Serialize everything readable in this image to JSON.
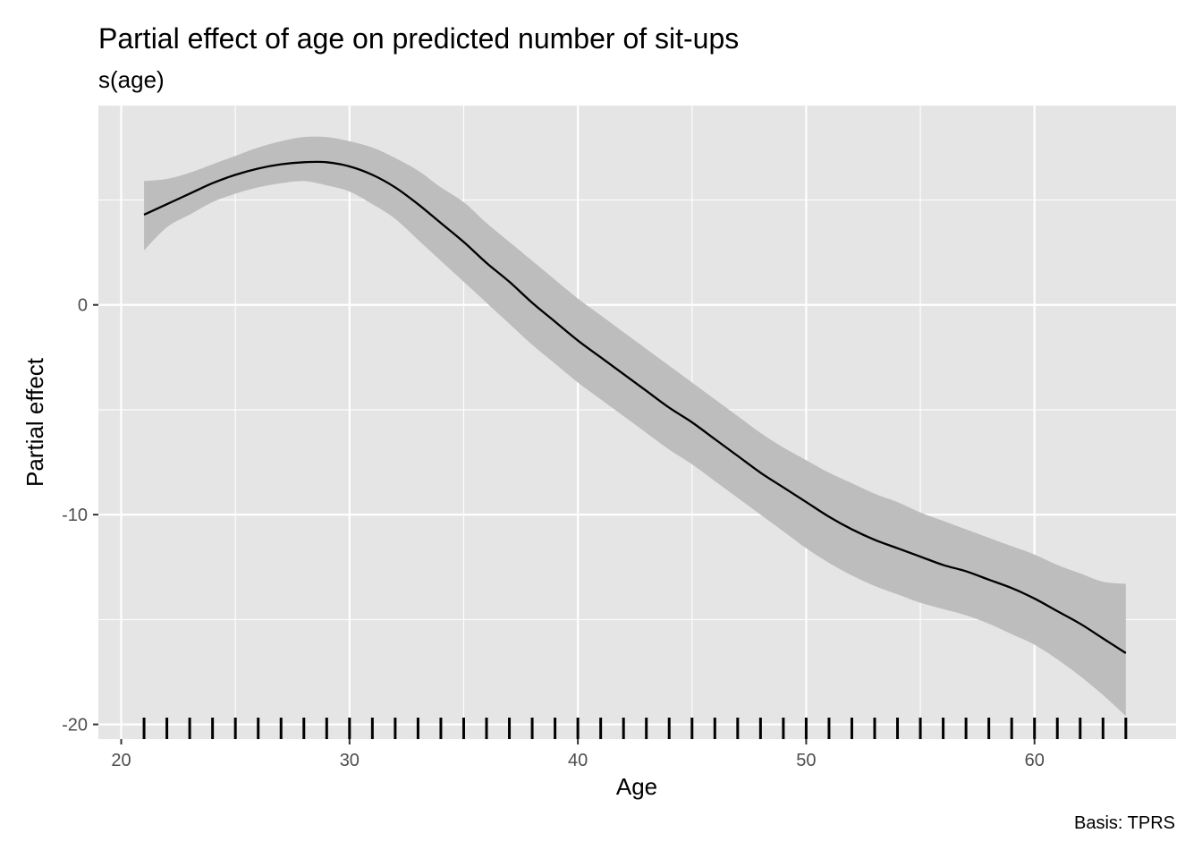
{
  "chart_data": {
    "type": "line",
    "title": "Partial effect of age on predicted number of sit-ups",
    "subtitle": "s(age)",
    "xlabel": "Age",
    "ylabel": "Partial effect",
    "caption": "Basis: TPRS",
    "xlim": [
      19.0,
      66.2
    ],
    "ylim": [
      -20.7,
      9.5
    ],
    "x_ticks": [
      20,
      30,
      40,
      50,
      60
    ],
    "y_ticks": [
      0,
      -10,
      -20
    ],
    "x_tick_labels": [
      "20",
      "30",
      "40",
      "50",
      "60"
    ],
    "y_tick_labels": [
      "0",
      "-10",
      "-20"
    ],
    "grid": true,
    "line_color": "#000000",
    "ribbon_color": "#bdbdbd",
    "panel_color": "#e5e5e5",
    "series": [
      {
        "x": [
          21,
          22,
          23,
          24,
          25,
          26,
          27,
          28,
          29,
          30,
          31,
          32,
          33,
          34,
          35,
          36,
          37,
          38,
          39,
          40,
          41,
          42,
          43,
          44,
          45,
          46,
          47,
          48,
          49,
          50,
          51,
          52,
          53,
          54,
          55,
          56,
          57,
          58,
          59,
          60,
          61,
          62,
          63,
          64
        ],
        "y": [
          4.3,
          4.8,
          5.3,
          5.8,
          6.2,
          6.5,
          6.7,
          6.8,
          6.8,
          6.6,
          6.2,
          5.6,
          4.8,
          3.9,
          3.0,
          2.0,
          1.1,
          0.1,
          -0.8,
          -1.7,
          -2.5,
          -3.3,
          -4.1,
          -4.9,
          -5.6,
          -6.4,
          -7.2,
          -8.0,
          -8.7,
          -9.4,
          -10.1,
          -10.7,
          -11.2,
          -11.6,
          -12.0,
          -12.4,
          -12.7,
          -13.1,
          -13.5,
          -14.0,
          -14.6,
          -15.2,
          -15.9,
          -16.6
        ],
        "lower": [
          2.6,
          3.7,
          4.3,
          4.9,
          5.3,
          5.6,
          5.8,
          5.9,
          5.7,
          5.4,
          4.8,
          4.1,
          3.1,
          2.1,
          1.1,
          0.1,
          -0.9,
          -1.9,
          -2.8,
          -3.7,
          -4.5,
          -5.3,
          -6.1,
          -6.9,
          -7.6,
          -8.4,
          -9.2,
          -10.0,
          -10.8,
          -11.6,
          -12.3,
          -12.9,
          -13.4,
          -13.8,
          -14.2,
          -14.5,
          -14.8,
          -15.2,
          -15.7,
          -16.2,
          -16.9,
          -17.7,
          -18.6,
          -19.6
        ],
        "upper": [
          5.9,
          6.0,
          6.3,
          6.7,
          7.1,
          7.5,
          7.8,
          8.0,
          8.0,
          7.8,
          7.5,
          7.0,
          6.4,
          5.6,
          4.9,
          3.9,
          3.0,
          2.1,
          1.2,
          0.3,
          -0.5,
          -1.3,
          -2.1,
          -2.9,
          -3.7,
          -4.5,
          -5.3,
          -6.1,
          -6.8,
          -7.4,
          -8.0,
          -8.5,
          -9.0,
          -9.4,
          -9.9,
          -10.3,
          -10.7,
          -11.1,
          -11.5,
          -11.9,
          -12.4,
          -12.8,
          -13.2,
          -13.3
        ]
      }
    ],
    "rug": [
      21,
      22,
      23,
      24,
      25,
      26,
      27,
      28,
      29,
      30,
      31,
      32,
      33,
      34,
      35,
      36,
      37,
      38,
      39,
      40,
      41,
      42,
      43,
      44,
      45,
      46,
      47,
      48,
      49,
      50,
      51,
      52,
      53,
      54,
      55,
      56,
      57,
      58,
      59,
      60,
      61,
      62,
      63,
      64
    ]
  }
}
